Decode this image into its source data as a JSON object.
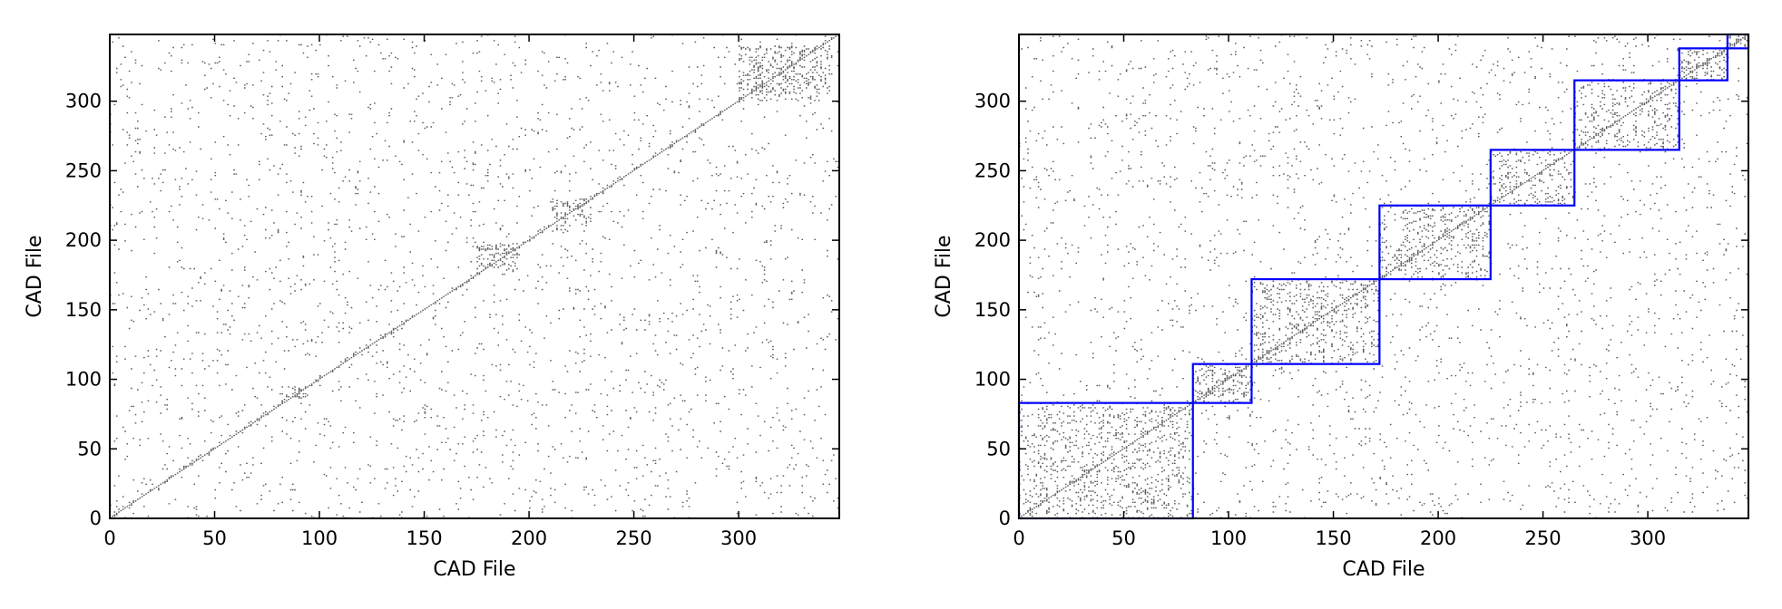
{
  "chart_data": [
    {
      "type": "heatmap",
      "title": "",
      "xlabel": "CAD File",
      "ylabel": "CAD File",
      "xlim": [
        0,
        348
      ],
      "ylim": [
        0,
        348
      ],
      "xticks": [
        0,
        50,
        100,
        150,
        200,
        250,
        300
      ],
      "yticks": [
        0,
        50,
        100,
        150,
        200,
        250,
        300
      ],
      "grid": false,
      "mark_color": "#000000",
      "description_of_values": "Binary pairwise similarity matrix between CAD files (sparse points); rows/cols in original order. Dense patches visible near x 175-195 / y 180-200 and along the diagonal.",
      "dense_regions": [
        {
          "x": [
            175,
            195
          ],
          "y": [
            178,
            198
          ]
        },
        {
          "x": [
            80,
            95
          ],
          "y": [
            85,
            95
          ]
        },
        {
          "x": [
            210,
            230
          ],
          "y": [
            205,
            230
          ]
        },
        {
          "x": [
            300,
            345
          ],
          "y": [
            300,
            340
          ]
        }
      ],
      "blocks": []
    },
    {
      "type": "heatmap",
      "title": "",
      "xlabel": "CAD File",
      "ylabel": "CAD File",
      "xlim": [
        0,
        348
      ],
      "ylim": [
        0,
        348
      ],
      "xticks": [
        0,
        50,
        100,
        150,
        200,
        250,
        300
      ],
      "yticks": [
        0,
        50,
        100,
        150,
        200,
        250,
        300
      ],
      "grid": false,
      "mark_color": "#000000",
      "block_color": "#0000ff",
      "description_of_values": "Same matrix reordered by cluster; blue rectangles mark cluster blocks along the diagonal.",
      "blocks": [
        {
          "start": 0,
          "end": 83
        },
        {
          "start": 83,
          "end": 111
        },
        {
          "start": 111,
          "end": 172
        },
        {
          "start": 172,
          "end": 225
        },
        {
          "start": 225,
          "end": 265
        },
        {
          "start": 265,
          "end": 315
        },
        {
          "start": 315,
          "end": 338
        },
        {
          "start": 338,
          "end": 348
        }
      ]
    }
  ]
}
